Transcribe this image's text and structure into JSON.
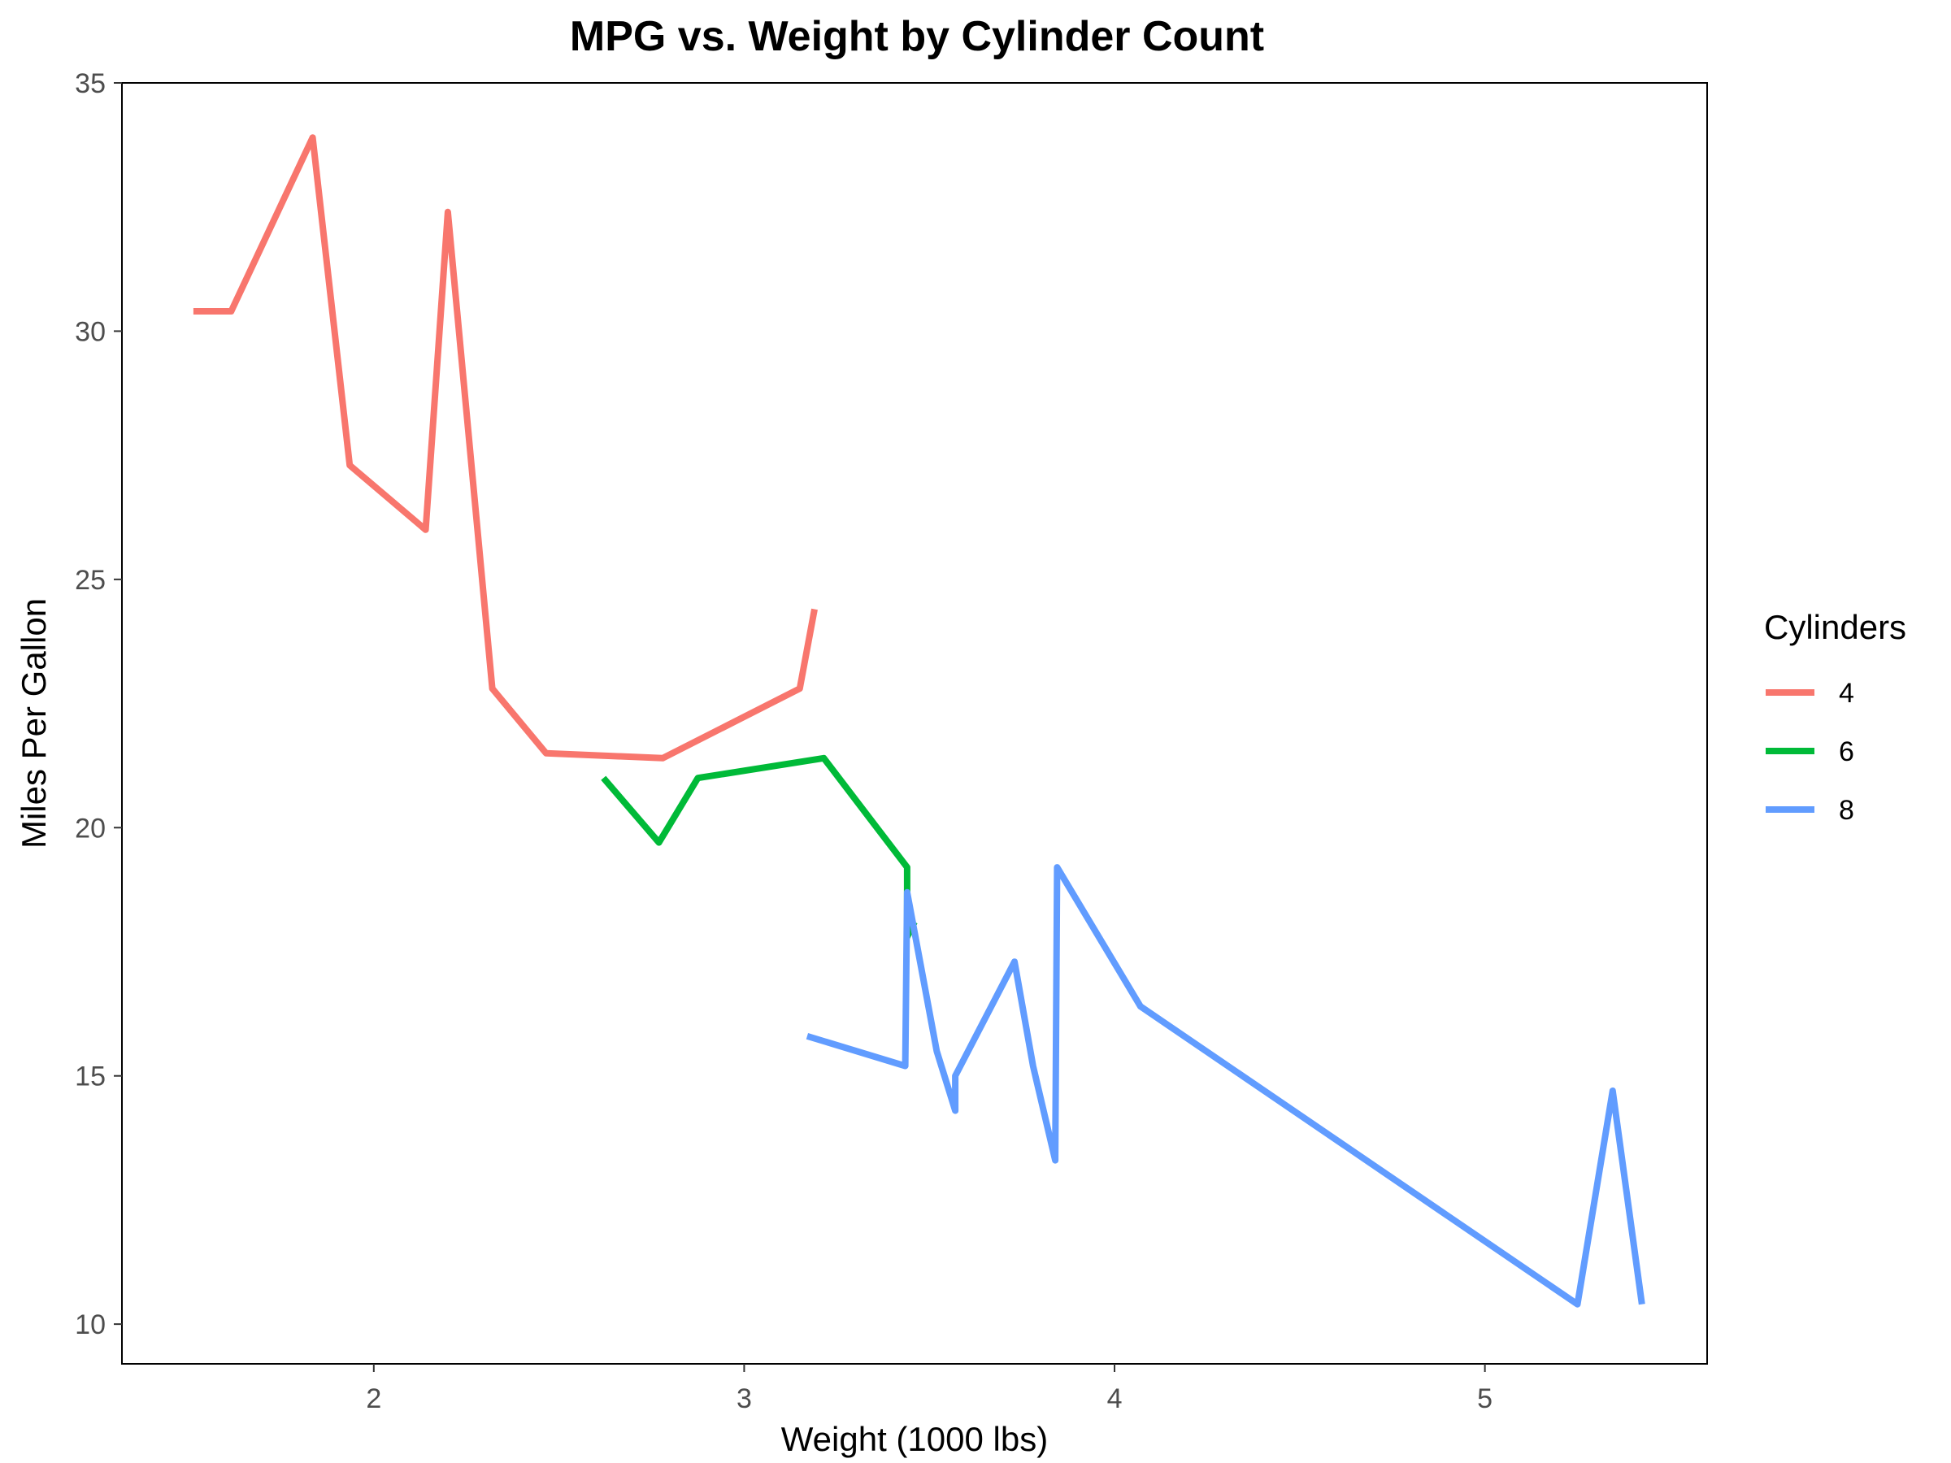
{
  "chart_data": {
    "type": "line",
    "title": "MPG vs. Weight by Cylinder Count",
    "xlabel": "Weight (1000 lbs)",
    "ylabel": "Miles Per Gallon",
    "xlim": [
      1.32,
      5.6
    ],
    "ylim": [
      9.2,
      35
    ],
    "xticks": [
      2,
      3,
      4,
      5
    ],
    "yticks": [
      10,
      15,
      20,
      25,
      30,
      35
    ],
    "grid": false,
    "legend": {
      "title": "Cylinders",
      "position": "right"
    },
    "series": [
      {
        "name": "4",
        "color": "#F8766D",
        "points": [
          [
            1.513,
            30.4
          ],
          [
            1.615,
            30.4
          ],
          [
            1.835,
            33.9
          ],
          [
            1.935,
            27.3
          ],
          [
            2.14,
            26.0
          ],
          [
            2.2,
            32.4
          ],
          [
            2.32,
            22.8
          ],
          [
            2.465,
            21.5
          ],
          [
            2.78,
            21.4
          ],
          [
            3.15,
            22.8
          ],
          [
            3.19,
            24.4
          ]
        ]
      },
      {
        "name": "6",
        "color": "#00BA38",
        "points": [
          [
            2.62,
            21.0
          ],
          [
            2.77,
            19.7
          ],
          [
            2.875,
            21.0
          ],
          [
            3.215,
            21.4
          ],
          [
            3.44,
            19.2
          ],
          [
            3.44,
            17.8
          ],
          [
            3.46,
            18.1
          ]
        ]
      },
      {
        "name": "8",
        "color": "#619CFF",
        "points": [
          [
            3.17,
            15.8
          ],
          [
            3.435,
            15.2
          ],
          [
            3.44,
            18.7
          ],
          [
            3.52,
            15.5
          ],
          [
            3.57,
            14.3
          ],
          [
            3.57,
            15.0
          ],
          [
            3.73,
            17.3
          ],
          [
            3.78,
            15.2
          ],
          [
            3.84,
            13.3
          ],
          [
            3.845,
            19.2
          ],
          [
            4.07,
            16.4
          ],
          [
            5.25,
            10.4
          ],
          [
            5.345,
            14.7
          ],
          [
            5.424,
            10.4
          ]
        ]
      }
    ]
  }
}
